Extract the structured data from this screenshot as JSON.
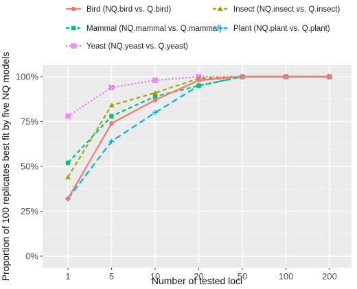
{
  "chart_data": {
    "type": "line",
    "xlabel": "Number of tested loci",
    "ylabel": "Proportion of 100 replicates best fit by five NQ models",
    "categories": [
      "1",
      "5",
      "10",
      "20",
      "50",
      "100",
      "200"
    ],
    "y_ticks": [
      "0%",
      "25%",
      "50%",
      "75%",
      "100%"
    ],
    "ylim": [
      0,
      100
    ],
    "grid": true,
    "legend_position": "top",
    "background": "#ebebeb",
    "series": [
      {
        "name": "Bird (NQ.bird vs. Q.bird)",
        "color": "#f8766d",
        "dash": "solid",
        "marker": "circle",
        "values": [
          32,
          74,
          87,
          98,
          100,
          100,
          100
        ]
      },
      {
        "name": "Insect (NQ.insect vs. Q.insect)",
        "color": "#a3a500",
        "dash": "dashed",
        "marker": "triangle",
        "values": [
          44,
          84,
          91,
          99,
          100,
          100,
          100
        ]
      },
      {
        "name": "Mammal (NQ.mammal vs. Q.mammal)",
        "color": "#00bf7d",
        "dash": "dashed",
        "marker": "square",
        "values": [
          52,
          78,
          89,
          95,
          100,
          100,
          100
        ]
      },
      {
        "name": "Plant (NQ.plant vs. Q.plant)",
        "color": "#00b0f6",
        "dash": "longdash",
        "marker": "plus",
        "values": [
          32,
          64,
          80,
          95,
          100,
          100,
          100
        ]
      },
      {
        "name": "Yeast (NQ.yeast vs. Q.yeast)",
        "color": "#e76bf3",
        "dash": "dotted",
        "marker": "boxx",
        "values": [
          78,
          94,
          98,
          100,
          100,
          100,
          100
        ]
      }
    ]
  }
}
